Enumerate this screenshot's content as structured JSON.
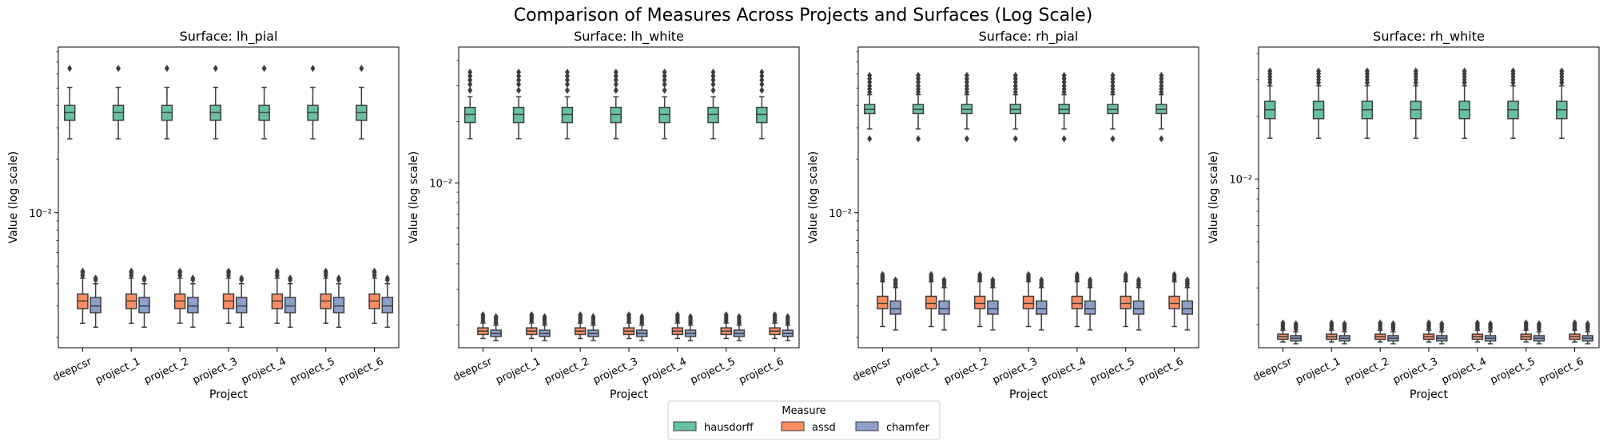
{
  "figure_title": "Comparison of Measures Across Projects and Surfaces (Log Scale)",
  "legend": {
    "title": "Measure",
    "placement": "bottom-center",
    "entries": [
      "hausdorff",
      "assd",
      "chamfer"
    ]
  },
  "colors": {
    "hausdorff": "#66c2a5",
    "assd": "#fc8d62",
    "chamfer": "#8da0cb",
    "box_edge": "#3d3d3d"
  },
  "chart_data": [
    {
      "type": "box",
      "title": "Surface: lh_pial",
      "xlabel": "Project",
      "ylabel": "Value (log scale)",
      "yscale": "log",
      "ylim": [
        0.00175,
        0.085
      ],
      "yticks": [
        {
          "value": 0.01,
          "label": "10⁻²"
        }
      ],
      "categories": [
        "deepcsr",
        "project_1",
        "project_2",
        "project_3",
        "project_4",
        "project_5",
        "project_6"
      ],
      "series": [
        {
          "name": "hausdorff",
          "whislo": 0.026,
          "q1": 0.033,
          "med": 0.0365,
          "q3": 0.04,
          "whishi": 0.0505,
          "fliers": [
            0.0645
          ]
        },
        {
          "name": "assd",
          "whislo": 0.0024,
          "q1": 0.0029,
          "med": 0.0032,
          "q3": 0.0035,
          "whishi": 0.0043,
          "fliers": [
            0.00445,
            0.0046,
            0.0047
          ]
        },
        {
          "name": "chamfer",
          "whislo": 0.00228,
          "q1": 0.00275,
          "med": 0.003,
          "q3": 0.00335,
          "whishi": 0.004,
          "fliers": [
            0.0042,
            0.0043
          ]
        }
      ]
    },
    {
      "type": "box",
      "title": "Surface: lh_white",
      "xlabel": "Project",
      "ylabel": "Value (log scale)",
      "yscale": "log",
      "ylim": [
        0.00155,
        0.0465
      ],
      "yticks": [
        {
          "value": 0.01,
          "label": "10⁻²"
        }
      ],
      "categories": [
        "deepcsr",
        "project_1",
        "project_2",
        "project_3",
        "project_4",
        "project_5",
        "project_6"
      ],
      "series": [
        {
          "name": "hausdorff",
          "whislo": 0.0165,
          "q1": 0.0198,
          "med": 0.0217,
          "q3": 0.0235,
          "whishi": 0.0265,
          "fliers": [
            0.0285,
            0.0305,
            0.032,
            0.0335,
            0.035
          ]
        },
        {
          "name": "assd",
          "whislo": 0.00172,
          "q1": 0.0018,
          "med": 0.00187,
          "q3": 0.00194,
          "whishi": 0.00205,
          "fliers": [
            0.0021,
            0.00215,
            0.0022,
            0.00225
          ]
        },
        {
          "name": "chamfer",
          "whislo": 0.00168,
          "q1": 0.00176,
          "med": 0.00182,
          "q3": 0.00189,
          "whishi": 0.002,
          "fliers": [
            0.00205,
            0.0021,
            0.00215,
            0.0022
          ]
        }
      ]
    },
    {
      "type": "box",
      "title": "Surface: rh_pial",
      "xlabel": "Project",
      "ylabel": "Value (log scale)",
      "yscale": "log",
      "ylim": [
        0.00175,
        0.085
      ],
      "yticks": [
        {
          "value": 0.01,
          "label": "10⁻²"
        }
      ],
      "categories": [
        "deepcsr",
        "project_1",
        "project_2",
        "project_3",
        "project_4",
        "project_5",
        "project_6"
      ],
      "series": [
        {
          "name": "hausdorff",
          "whislo": 0.0295,
          "q1": 0.036,
          "med": 0.038,
          "q3": 0.0405,
          "whishi": 0.046,
          "fliers": [
            0.026,
            0.0475,
            0.0495,
            0.0515,
            0.054,
            0.0565,
            0.059
          ]
        },
        {
          "name": "assd",
          "whislo": 0.0023,
          "q1": 0.0029,
          "med": 0.0031,
          "q3": 0.0034,
          "whishi": 0.0041,
          "fliers": [
            0.0042,
            0.0043,
            0.0044,
            0.0045
          ]
        },
        {
          "name": "chamfer",
          "whislo": 0.0022,
          "q1": 0.0027,
          "med": 0.0029,
          "q3": 0.0032,
          "whishi": 0.0038,
          "fliers": [
            0.0039,
            0.004,
            0.0041,
            0.0042
          ]
        }
      ]
    },
    {
      "type": "box",
      "title": "Surface: rh_white",
      "xlabel": "Project",
      "ylabel": "Value (log scale)",
      "yscale": "log",
      "ylim": [
        0.00155,
        0.043
      ],
      "yticks": [
        {
          "value": 0.01,
          "label": "10⁻²"
        }
      ],
      "categories": [
        "deepcsr",
        "project_1",
        "project_2",
        "project_3",
        "project_4",
        "project_5",
        "project_6"
      ],
      "series": [
        {
          "name": "hausdorff",
          "whislo": 0.0157,
          "q1": 0.0195,
          "med": 0.0215,
          "q3": 0.0236,
          "whishi": 0.028,
          "fliers": [
            0.029,
            0.03,
            0.031,
            0.032,
            0.033
          ]
        },
        {
          "name": "assd",
          "whislo": 0.00165,
          "q1": 0.0017,
          "med": 0.00175,
          "q3": 0.0018,
          "whishi": 0.00188,
          "fliers": [
            0.00192,
            0.00196,
            0.002,
            0.00204
          ]
        },
        {
          "name": "chamfer",
          "whislo": 0.00162,
          "q1": 0.00167,
          "med": 0.00172,
          "q3": 0.00177,
          "whishi": 0.00185,
          "fliers": [
            0.0019,
            0.00194,
            0.00198,
            0.00202
          ]
        }
      ]
    }
  ]
}
